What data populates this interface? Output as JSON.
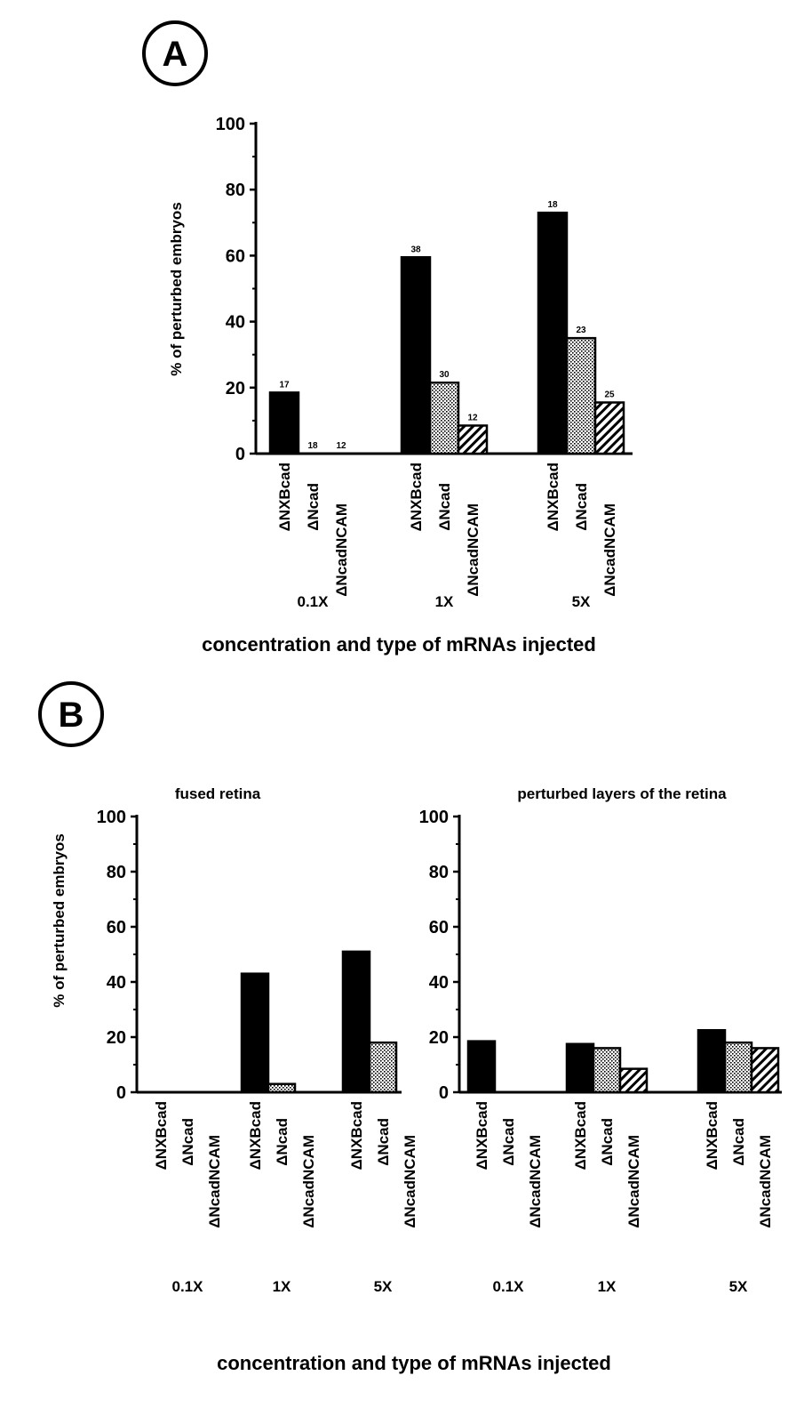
{
  "figure": {
    "panel_a_letter": "A",
    "panel_b_letter": "B"
  },
  "colors": {
    "ΔNXBcad": "#000000",
    "ΔNcad": "stipple",
    "ΔNcadNCAM": "hatch"
  },
  "chart_data": [
    {
      "type": "bar",
      "panel": "A",
      "title": "",
      "ylabel": "% of perturbed embryos",
      "xlabel": "concentration and type of mRNAs injected",
      "ylim": [
        0,
        100
      ],
      "yticks": [
        0,
        20,
        40,
        60,
        80,
        100
      ],
      "groups": [
        "0.1X",
        "1X",
        "5X"
      ],
      "categories": [
        "ΔNXBcad",
        "ΔNcad",
        "ΔNcadNCAM"
      ],
      "series": [
        {
          "name": "ΔNXBcad",
          "values": [
            18.5,
            59.5,
            73
          ],
          "n": [
            "17",
            "38",
            "18"
          ]
        },
        {
          "name": "ΔNcad",
          "values": [
            0,
            21.5,
            35
          ],
          "n": [
            "18",
            "30",
            "23"
          ]
        },
        {
          "name": "ΔNcadNCAM",
          "values": [
            0,
            8.5,
            15.5
          ],
          "n": [
            "12",
            "12",
            "25"
          ]
        }
      ],
      "grid": false,
      "legend": "none"
    },
    {
      "type": "bar",
      "panel": "B",
      "title": "fused retina",
      "ylabel": "% of perturbed embryos",
      "xlabel": "concentration and type of mRNAs injected",
      "ylim": [
        0,
        100
      ],
      "yticks": [
        0,
        20,
        40,
        60,
        80,
        100
      ],
      "groups": [
        "0.1X",
        "1X",
        "5X"
      ],
      "categories": [
        "ΔNXBcad",
        "ΔNcad",
        "ΔNcadNCAM"
      ],
      "series": [
        {
          "name": "ΔNXBcad",
          "values": [
            0,
            43,
            51
          ]
        },
        {
          "name": "ΔNcad",
          "values": [
            0,
            3,
            18
          ]
        },
        {
          "name": "ΔNcadNCAM",
          "values": [
            0,
            0,
            0
          ]
        }
      ],
      "grid": false,
      "legend": "none"
    },
    {
      "type": "bar",
      "panel": "B",
      "title": "perturbed layers of the retina",
      "ylabel": "",
      "xlabel": "concentration and type of mRNAs injected",
      "ylim": [
        0,
        100
      ],
      "yticks": [
        0,
        20,
        40,
        60,
        80,
        100
      ],
      "groups": [
        "0.1X",
        "1X",
        "5X"
      ],
      "categories": [
        "ΔNXBcad",
        "ΔNcad",
        "ΔNcadNCAM"
      ],
      "series": [
        {
          "name": "ΔNXBcad",
          "values": [
            18.5,
            17.5,
            22.5
          ]
        },
        {
          "name": "ΔNcad",
          "values": [
            0,
            16,
            18
          ]
        },
        {
          "name": "ΔNcadNCAM",
          "values": [
            0,
            8.5,
            16
          ]
        }
      ],
      "grid": false,
      "legend": "none"
    }
  ]
}
